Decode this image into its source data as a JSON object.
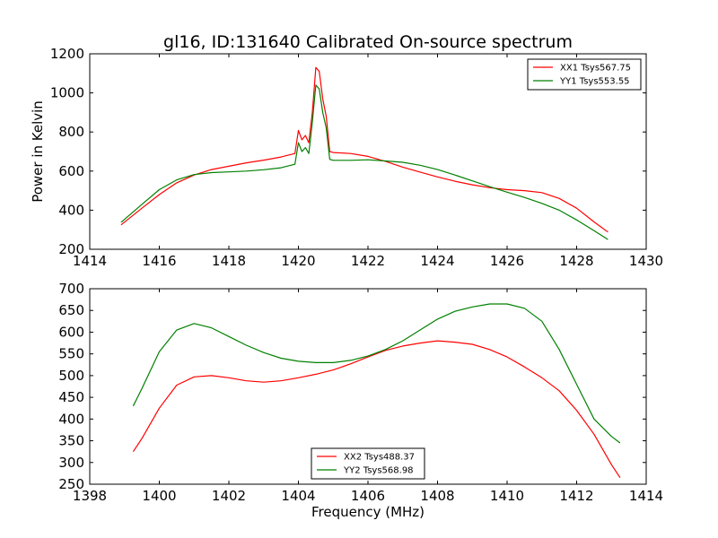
{
  "chart_data": [
    {
      "type": "line",
      "title": "gl16, ID:131640 Calibrated On-source spectrum",
      "xlabel": "",
      "ylabel": "Power in Kelvin",
      "xlim": [
        1414,
        1430
      ],
      "ylim": [
        200,
        1200
      ],
      "xticks": [
        1414,
        1416,
        1418,
        1420,
        1422,
        1424,
        1426,
        1428,
        1430
      ],
      "yticks": [
        200,
        400,
        600,
        800,
        1000,
        1200
      ],
      "legend_position": "top-right",
      "series": [
        {
          "name": "XX1 Tsys567.75",
          "color": "#ff0000",
          "x": [
            1414.9,
            1415.5,
            1416.0,
            1416.5,
            1417.0,
            1417.5,
            1418.0,
            1418.5,
            1419.0,
            1419.5,
            1419.9,
            1420.0,
            1420.1,
            1420.2,
            1420.3,
            1420.4,
            1420.5,
            1420.6,
            1420.7,
            1420.8,
            1420.9,
            1421.0,
            1421.5,
            1422.0,
            1422.5,
            1423.0,
            1423.5,
            1424.0,
            1424.5,
            1425.0,
            1425.5,
            1426.0,
            1426.5,
            1427.0,
            1427.5,
            1428.0,
            1428.5,
            1428.9
          ],
          "y": [
            325,
            410,
            480,
            540,
            580,
            608,
            625,
            642,
            656,
            672,
            690,
            808,
            760,
            782,
            745,
            900,
            1130,
            1110,
            970,
            880,
            700,
            695,
            690,
            675,
            650,
            620,
            595,
            570,
            548,
            530,
            515,
            505,
            500,
            490,
            460,
            410,
            340,
            288
          ]
        },
        {
          "name": "YY1 Tsys553.55",
          "color": "#008000",
          "x": [
            1414.9,
            1415.5,
            1416.0,
            1416.5,
            1417.0,
            1417.5,
            1418.0,
            1418.5,
            1419.0,
            1419.5,
            1419.9,
            1420.0,
            1420.1,
            1420.2,
            1420.3,
            1420.4,
            1420.5,
            1420.6,
            1420.7,
            1420.8,
            1420.9,
            1421.0,
            1421.5,
            1422.0,
            1422.5,
            1423.0,
            1423.5,
            1424.0,
            1424.5,
            1425.0,
            1425.5,
            1426.0,
            1426.5,
            1427.0,
            1427.5,
            1428.0,
            1428.5,
            1428.9
          ],
          "y": [
            338,
            430,
            505,
            555,
            582,
            592,
            596,
            600,
            607,
            617,
            635,
            745,
            700,
            720,
            690,
            850,
            1040,
            1020,
            900,
            820,
            660,
            655,
            655,
            658,
            652,
            645,
            630,
            608,
            580,
            550,
            520,
            492,
            465,
            435,
            400,
            350,
            295,
            250
          ]
        }
      ]
    },
    {
      "type": "line",
      "title": "",
      "xlabel": "Frequency (MHz)",
      "ylabel": "",
      "xlim": [
        1398,
        1414
      ],
      "ylim": [
        250,
        700
      ],
      "xticks": [
        1398,
        1400,
        1402,
        1404,
        1406,
        1408,
        1410,
        1412,
        1414
      ],
      "yticks": [
        250,
        300,
        350,
        400,
        450,
        500,
        550,
        600,
        650,
        700
      ],
      "legend_position": "bottom-center",
      "series": [
        {
          "name": "XX2 Tsys488.37",
          "color": "#ff0000",
          "x": [
            1399.25,
            1399.5,
            1400.0,
            1400.5,
            1401.0,
            1401.5,
            1402.0,
            1402.5,
            1403.0,
            1403.5,
            1404.0,
            1404.5,
            1405.0,
            1405.5,
            1406.0,
            1406.5,
            1407.0,
            1407.5,
            1408.0,
            1408.5,
            1409.0,
            1409.5,
            1410.0,
            1410.5,
            1411.0,
            1411.5,
            1412.0,
            1412.5,
            1413.0,
            1413.25
          ],
          "y": [
            325,
            355,
            425,
            478,
            497,
            500,
            495,
            488,
            485,
            488,
            495,
            503,
            513,
            527,
            543,
            558,
            568,
            575,
            580,
            577,
            572,
            560,
            543,
            520,
            495,
            465,
            420,
            365,
            295,
            265
          ]
        },
        {
          "name": "YY2 Tsys568.98",
          "color": "#008000",
          "x": [
            1399.25,
            1399.5,
            1400.0,
            1400.5,
            1401.0,
            1401.5,
            1402.0,
            1402.5,
            1403.0,
            1403.5,
            1404.0,
            1404.5,
            1405.0,
            1405.5,
            1406.0,
            1406.5,
            1407.0,
            1407.5,
            1408.0,
            1408.5,
            1409.0,
            1409.5,
            1410.0,
            1410.5,
            1411.0,
            1411.5,
            1412.0,
            1412.5,
            1413.0,
            1413.25
          ],
          "y": [
            430,
            470,
            555,
            605,
            620,
            610,
            590,
            570,
            553,
            540,
            533,
            530,
            530,
            535,
            545,
            560,
            580,
            605,
            630,
            648,
            658,
            665,
            665,
            655,
            625,
            560,
            480,
            400,
            360,
            345
          ]
        }
      ]
    }
  ]
}
